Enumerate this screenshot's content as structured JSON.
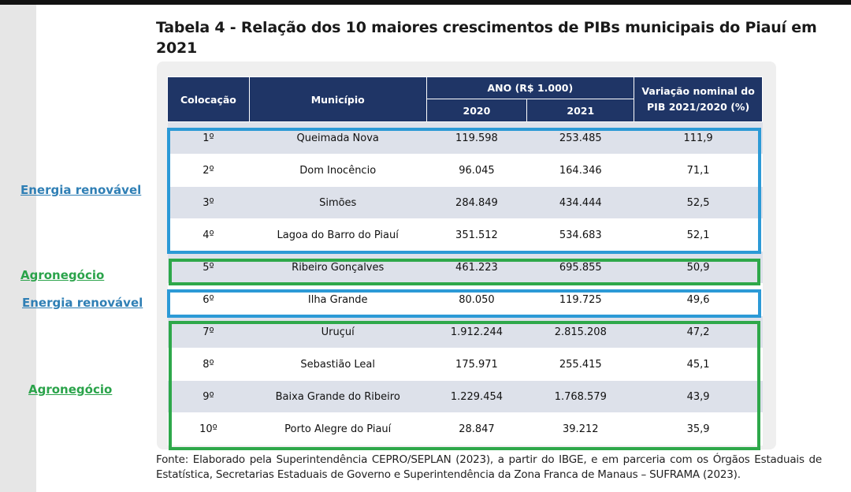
{
  "title": "Tabela 4 - Relação dos 10 maiores crescimentos de PIBs municipais do Piauí em 2021",
  "table": {
    "headers": {
      "colocacao": "Colocação",
      "municipio": "Município",
      "ano": "ANO (R$ 1.000)",
      "y2020": "2020",
      "y2021": "2021",
      "variacao": "Variação nominal do PIB 2021/2020 (%)"
    },
    "rows": [
      {
        "pos": "1º",
        "municipio": "Queimada Nova",
        "v2020": "119.598",
        "v2021": "253.485",
        "var": "111,9"
      },
      {
        "pos": "2º",
        "municipio": "Dom Inocêncio",
        "v2020": "96.045",
        "v2021": "164.346",
        "var": "71,1"
      },
      {
        "pos": "3º",
        "municipio": "Simões",
        "v2020": "284.849",
        "v2021": "434.444",
        "var": "52,5"
      },
      {
        "pos": "4º",
        "municipio": "Lagoa do Barro do Piauí",
        "v2020": "351.512",
        "v2021": "534.683",
        "var": "52,1"
      },
      {
        "pos": "5º",
        "municipio": "Ribeiro Gonçalves",
        "v2020": "461.223",
        "v2021": "695.855",
        "var": "50,9"
      },
      {
        "pos": "6º",
        "municipio": "Ilha Grande",
        "v2020": "80.050",
        "v2021": "119.725",
        "var": "49,6"
      },
      {
        "pos": "7º",
        "municipio": "Uruçuí",
        "v2020": "1.912.244",
        "v2021": "2.815.208",
        "var": "47,2"
      },
      {
        "pos": "8º",
        "municipio": "Sebastião Leal",
        "v2020": "175.971",
        "v2021": "255.415",
        "var": "45,1"
      },
      {
        "pos": "9º",
        "municipio": "Baixa Grande do Ribeiro",
        "v2020": "1.229.454",
        "v2021": "1.768.579",
        "var": "43,9"
      },
      {
        "pos": "10º",
        "municipio": "Porto Alegre do Piauí",
        "v2020": "28.847",
        "v2021": "39.212",
        "var": "35,9"
      }
    ]
  },
  "annotations": {
    "energia_1": "Energia renovável",
    "agro_1": "Agronegócio",
    "energia_2": "Energia renovável",
    "agro_2": "Agronegócio",
    "colors": {
      "energia": "#2c9ad6",
      "agro": "#2ea84a"
    }
  },
  "fonte": "Fonte: Elaborado pela Superintendência CEPRO/SEPLAN (2023), a partir do IBGE, e em parceria com os Órgãos Estaduais de Estatística, Secretarias Estaduais de Governo e Superintendência da Zona Franca de Manaus – SUFRAMA (2023)."
}
